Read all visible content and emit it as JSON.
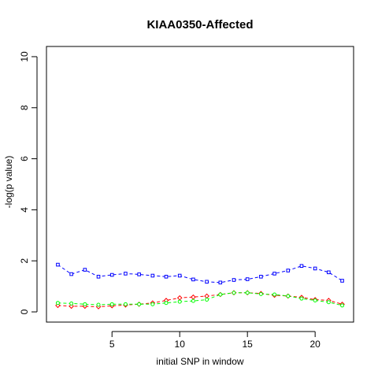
{
  "chart_data": {
    "type": "scatter",
    "title": "KIAA0350-Affected",
    "xlabel": "initial SNP in window",
    "ylabel": "-log(p value)",
    "xlim": [
      0.16,
      22.84
    ],
    "ylim": [
      -0.4,
      10.4
    ],
    "xticks": [
      5,
      10,
      15,
      20
    ],
    "yticks": [
      0,
      2,
      4,
      6,
      8,
      10
    ],
    "grid": false,
    "x": [
      1,
      2,
      3,
      4,
      5,
      6,
      7,
      8,
      9,
      10,
      11,
      12,
      13,
      14,
      15,
      16,
      17,
      18,
      19,
      20,
      21,
      22
    ],
    "series": [
      {
        "color": "#0000ff",
        "marker": "square",
        "values": [
          1.85,
          1.48,
          1.65,
          1.38,
          1.45,
          1.5,
          1.47,
          1.42,
          1.38,
          1.42,
          1.27,
          1.18,
          1.15,
          1.25,
          1.28,
          1.38,
          1.5,
          1.62,
          1.8,
          1.7,
          1.55,
          1.22
        ]
      },
      {
        "color": "#ff0000",
        "marker": "diamond",
        "values": [
          0.25,
          0.22,
          0.22,
          0.2,
          0.24,
          0.27,
          0.3,
          0.35,
          0.45,
          0.55,
          0.58,
          0.62,
          0.68,
          0.75,
          0.75,
          0.72,
          0.65,
          0.62,
          0.57,
          0.48,
          0.45,
          0.3
        ]
      },
      {
        "color": "#00ff00",
        "marker": "circle",
        "values": [
          0.35,
          0.33,
          0.3,
          0.28,
          0.3,
          0.3,
          0.3,
          0.3,
          0.35,
          0.4,
          0.43,
          0.48,
          0.68,
          0.75,
          0.75,
          0.7,
          0.68,
          0.62,
          0.52,
          0.45,
          0.38,
          0.25
        ]
      }
    ]
  }
}
